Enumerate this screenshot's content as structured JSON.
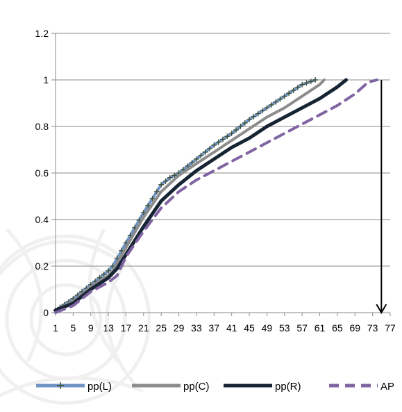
{
  "chart_data": {
    "type": "line",
    "title": "",
    "xlabel": "",
    "ylabel": "",
    "ylim": [
      0,
      1.2
    ],
    "xlim": [
      1,
      77
    ],
    "grid": true,
    "legend_position": "bottom",
    "yticks": [
      {
        "value": 0,
        "label": "0"
      },
      {
        "value": 0.2,
        "label": "0.2"
      },
      {
        "value": 0.4,
        "label": "0.4"
      },
      {
        "value": 0.6,
        "label": "0.6"
      },
      {
        "value": 0.8,
        "label": "0.8"
      },
      {
        "value": 1,
        "label": "1"
      },
      {
        "value": 1.2,
        "label": "1.2"
      }
    ],
    "xticks": [
      "1",
      "5",
      "9",
      "13",
      "17",
      "21",
      "25",
      "29",
      "33",
      "37",
      "41",
      "45",
      "49",
      "53",
      "57",
      "61",
      "65",
      "69",
      "73",
      "77"
    ],
    "series": [
      {
        "name": "pp(L)",
        "color": "#6f93c4",
        "style": "solid-marker-plus",
        "x": [
          1,
          5,
          9,
          13,
          14,
          17,
          21,
          25,
          27,
          29,
          33,
          37,
          41,
          45,
          49,
          53,
          57,
          60
        ],
        "y": [
          0.01,
          0.06,
          0.12,
          0.18,
          0.2,
          0.3,
          0.43,
          0.55,
          0.58,
          0.6,
          0.66,
          0.72,
          0.77,
          0.83,
          0.88,
          0.93,
          0.98,
          1.0
        ]
      },
      {
        "name": "pp(C)",
        "color": "#8c8c8c",
        "style": "solid",
        "x": [
          1,
          5,
          9,
          13,
          14,
          17,
          21,
          25,
          29,
          33,
          37,
          41,
          45,
          49,
          53,
          57,
          61,
          62
        ],
        "y": [
          0.01,
          0.05,
          0.11,
          0.16,
          0.18,
          0.28,
          0.41,
          0.52,
          0.59,
          0.64,
          0.69,
          0.74,
          0.79,
          0.84,
          0.88,
          0.93,
          0.98,
          1.0
        ]
      },
      {
        "name": "pp(R)",
        "color": "#162433",
        "style": "solid",
        "x": [
          1,
          5,
          9,
          13,
          15,
          17,
          21,
          25,
          29,
          33,
          37,
          41,
          45,
          49,
          53,
          57,
          61,
          65,
          67
        ],
        "y": [
          0.01,
          0.04,
          0.1,
          0.15,
          0.19,
          0.25,
          0.37,
          0.48,
          0.55,
          0.61,
          0.66,
          0.71,
          0.75,
          0.8,
          0.84,
          0.88,
          0.92,
          0.97,
          1.0
        ]
      },
      {
        "name": "AP",
        "color": "#8064a2",
        "style": "dashed",
        "x": [
          1,
          5,
          9,
          13,
          15,
          17,
          21,
          25,
          29,
          33,
          37,
          41,
          45,
          49,
          53,
          57,
          61,
          65,
          69,
          72,
          74
        ],
        "y": [
          0.0,
          0.03,
          0.09,
          0.13,
          0.16,
          0.24,
          0.35,
          0.45,
          0.52,
          0.57,
          0.61,
          0.65,
          0.69,
          0.73,
          0.77,
          0.81,
          0.85,
          0.89,
          0.94,
          0.99,
          1.0
        ]
      }
    ],
    "annotations": [
      {
        "type": "arrow",
        "x": 75,
        "y_from": 1.0,
        "y_to": 0
      }
    ]
  }
}
